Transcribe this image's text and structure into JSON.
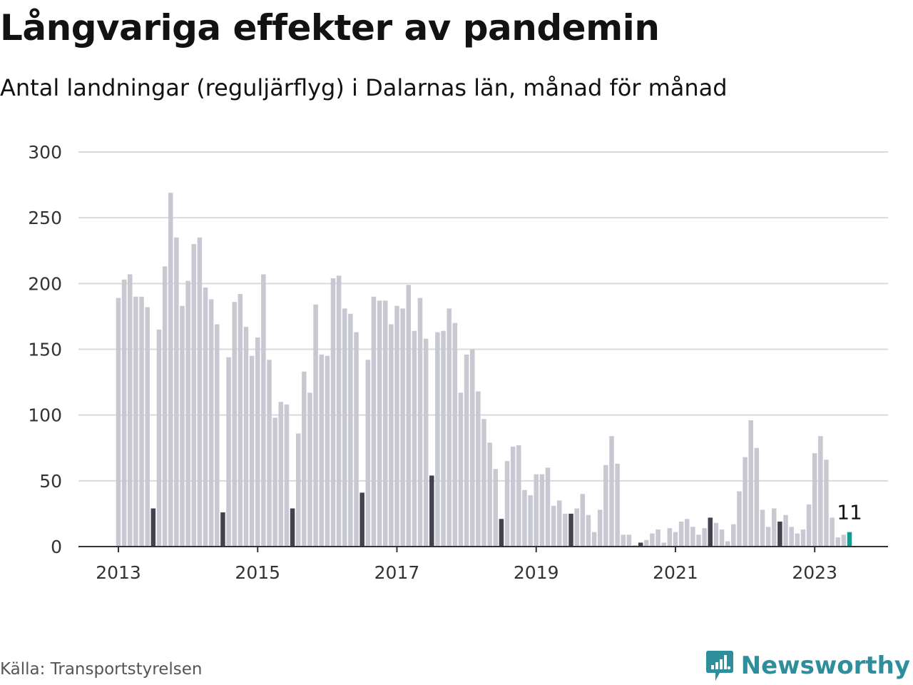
{
  "header": {
    "title": "Långvariga effekter av pandemin",
    "subtitle": "Antal landningar (reguljärflyg) i Dalarnas län, månad för månad"
  },
  "footer": {
    "source": "Källa: Transportstyrelsen",
    "brand": "Newsworthy"
  },
  "colors": {
    "bar": "#c8c8d2",
    "july_highlight": "#43434f",
    "latest": "#159a94",
    "grid": "#dadada",
    "axis": "#333333",
    "brand": "#2f8e9b"
  },
  "chart_data": {
    "type": "bar",
    "title": "Långvariga effekter av pandemin",
    "subtitle": "Antal landningar (reguljärflyg) i Dalarnas län, månad för månad",
    "xlabel": "",
    "ylabel": "",
    "ylim": [
      0,
      300
    ],
    "yticks": [
      "0",
      "50",
      "100",
      "150",
      "200",
      "250",
      "300"
    ],
    "xticks": [
      "2013",
      "2015",
      "2017",
      "2019",
      "2021",
      "2023"
    ],
    "start": "2013-01",
    "frequency": "monthly",
    "grid": "horizontal",
    "highlight": "July of each year shown in dark color; latest month (2023-07) in teal",
    "annotation": "11",
    "series": [
      {
        "values": [
          189,
          203,
          207,
          190,
          190,
          182,
          29,
          165,
          213,
          269,
          235,
          183,
          202,
          230,
          235,
          197,
          188,
          169,
          26,
          144,
          186,
          192,
          167,
          145,
          159,
          207,
          142,
          98,
          110,
          108,
          29,
          86,
          133,
          117,
          184,
          146,
          145,
          204,
          206,
          181,
          177,
          163,
          41,
          142,
          190,
          187,
          187,
          169,
          183,
          181,
          199,
          164,
          189,
          158,
          54,
          163,
          164,
          181,
          170,
          117,
          146,
          150,
          118,
          97,
          79,
          59,
          21,
          65,
          76,
          77,
          43,
          39,
          55,
          55,
          60,
          31,
          35,
          25,
          25,
          29,
          40,
          24,
          11,
          28,
          62,
          84,
          63,
          9,
          9,
          1,
          3,
          5,
          10,
          13,
          3,
          14,
          11,
          19,
          21,
          15,
          9,
          14,
          22,
          18,
          13,
          4,
          17,
          42,
          68,
          96,
          75,
          28,
          15,
          29,
          19,
          24,
          15,
          10,
          13,
          32,
          71,
          84,
          66,
          22,
          7,
          9,
          11
        ]
      }
    ]
  }
}
